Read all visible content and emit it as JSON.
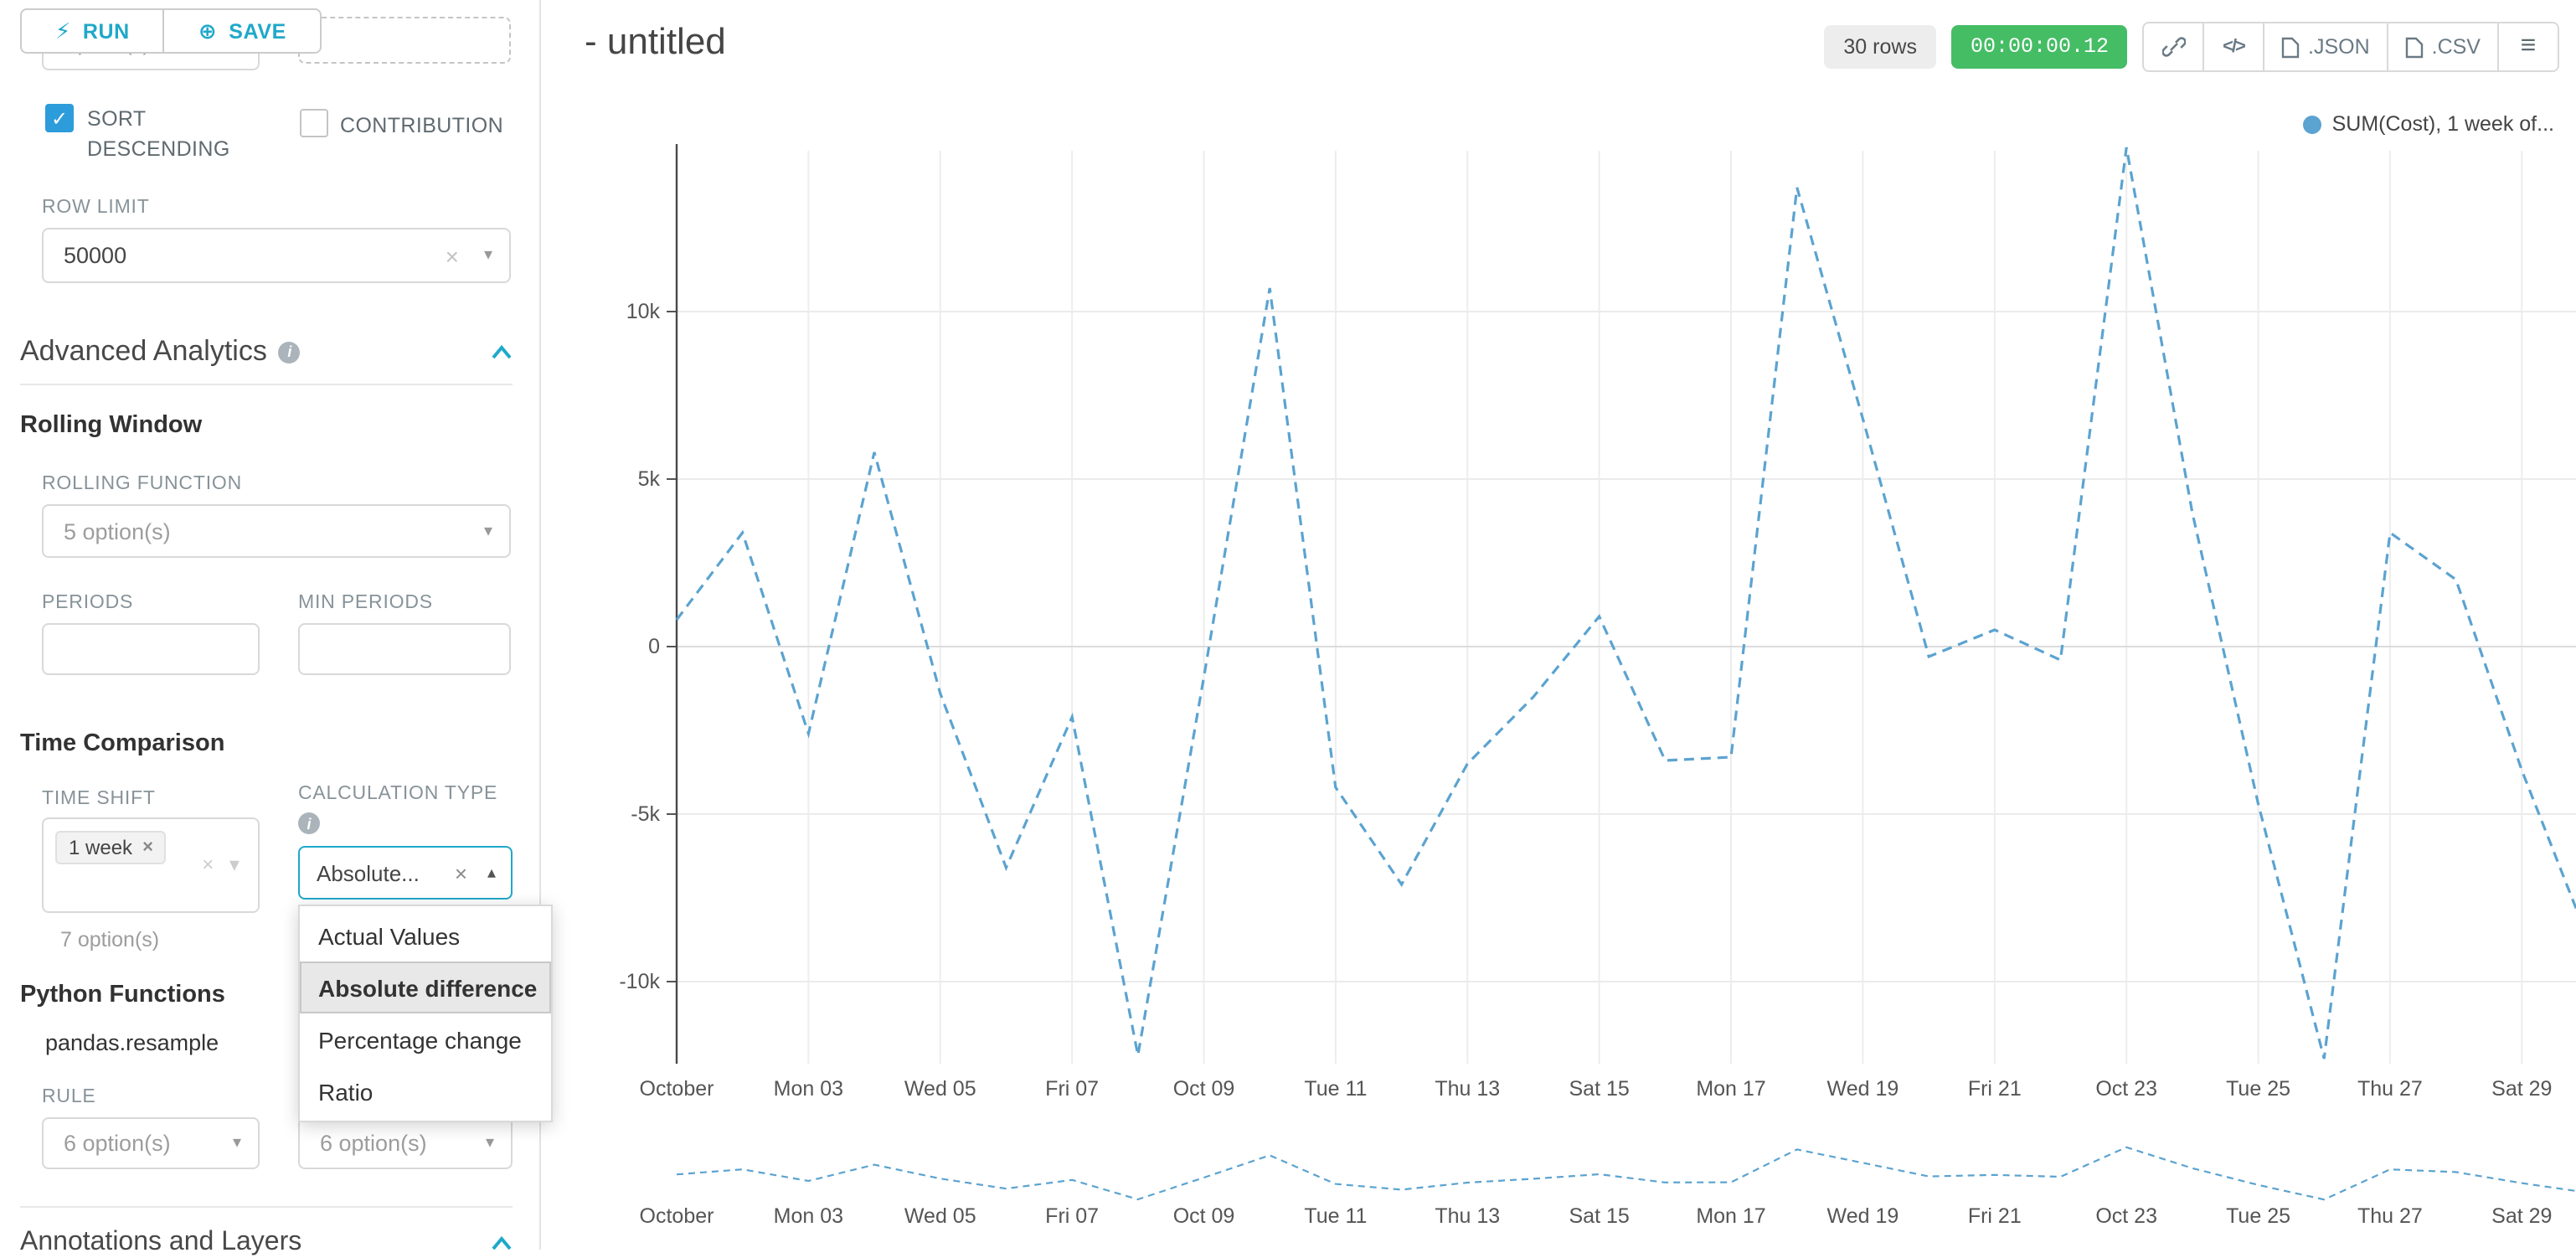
{
  "colors": {
    "accent": "#1fa8c9",
    "checkbox_blue": "#2d9cdb",
    "timer_green": "#45bd65",
    "line_blue": "#5ba3d0"
  },
  "toolbar": {
    "run_label": "RUN",
    "save_label": "SAVE"
  },
  "panel": {
    "clipped_top_left_value": "option(s)",
    "sort_descending_label": "SORT DESCENDING",
    "contribution_label": "CONTRIBUTION",
    "row_limit_label": "ROW LIMIT",
    "row_limit_value": "50000",
    "advanced_analytics_title": "Advanced Analytics",
    "rolling_window": {
      "title": "Rolling Window",
      "rolling_function_label": "ROLLING FUNCTION",
      "rolling_function_value": "5 option(s)",
      "periods_label": "PERIODS",
      "min_periods_label": "MIN PERIODS"
    },
    "time_comparison": {
      "title": "Time Comparison",
      "time_shift_label": "TIME SHIFT",
      "time_shift_tag": "1 week",
      "time_shift_hint": "7 option(s)",
      "calculation_type_label": "CALCULATION TYPE",
      "calculation_type_value": "Absolute...",
      "options": [
        "Actual Values",
        "Absolute difference",
        "Percentage change",
        "Ratio"
      ],
      "selected_option": "Absolute difference"
    },
    "python_functions": {
      "title": "Python Functions",
      "function_name": "pandas.resample",
      "rule_label": "RULE",
      "rule_value": "6 option(s)",
      "method_value": "6 option(s)"
    },
    "annotations_title": "Annotations and Layers"
  },
  "header": {
    "title": "- untitled",
    "rows_badge": "30 rows",
    "timer": "00:00:00.12",
    "json_label": ".JSON",
    "csv_label": ".CSV"
  },
  "chart_data": {
    "type": "line",
    "title": "",
    "legend": "SUM(Cost), 1 week of...",
    "line_color": "#5ba3d0",
    "dashed": true,
    "grid": true,
    "legend_position": "top-right",
    "ylim": [
      -12500,
      15000
    ],
    "y_ticks": [
      {
        "label": "10k",
        "value": 10000
      },
      {
        "label": "5k",
        "value": 5000
      },
      {
        "label": "0",
        "value": 0
      },
      {
        "label": "-5k",
        "value": -5000
      },
      {
        "label": "-10k",
        "value": -10000
      }
    ],
    "x_tick_labels": [
      "October",
      "Mon 03",
      "Wed 05",
      "Fri 07",
      "Oct 09",
      "Tue 11",
      "Thu 13",
      "Sat 15",
      "Mon 17",
      "Wed 19",
      "Fri 21",
      "Oct 23",
      "Tue 25",
      "Thu 27",
      "Sat 29"
    ],
    "series": [
      {
        "name": "SUM(Cost), 1 week offset",
        "x": [
          "Oct 01",
          "Oct 02",
          "Oct 03",
          "Oct 04",
          "Oct 05",
          "Oct 06",
          "Oct 07",
          "Oct 08",
          "Oct 09",
          "Oct 10",
          "Oct 11",
          "Oct 12",
          "Oct 13",
          "Oct 14",
          "Oct 15",
          "Oct 16",
          "Oct 17",
          "Oct 18",
          "Oct 19",
          "Oct 20",
          "Oct 21",
          "Oct 22",
          "Oct 23",
          "Oct 24",
          "Oct 25",
          "Oct 26",
          "Oct 27",
          "Oct 28",
          "Oct 29",
          "Oct 30"
        ],
        "values": [
          800,
          3400,
          -2600,
          5800,
          -1400,
          -6600,
          -2100,
          -12200,
          -900,
          10700,
          -4200,
          -7100,
          -3500,
          -1500,
          900,
          -3400,
          -3300,
          13700,
          6800,
          -300,
          500,
          -400,
          14900,
          4000,
          -4700,
          -12300,
          3400,
          2000,
          -3700,
          -8700
        ]
      }
    ]
  }
}
